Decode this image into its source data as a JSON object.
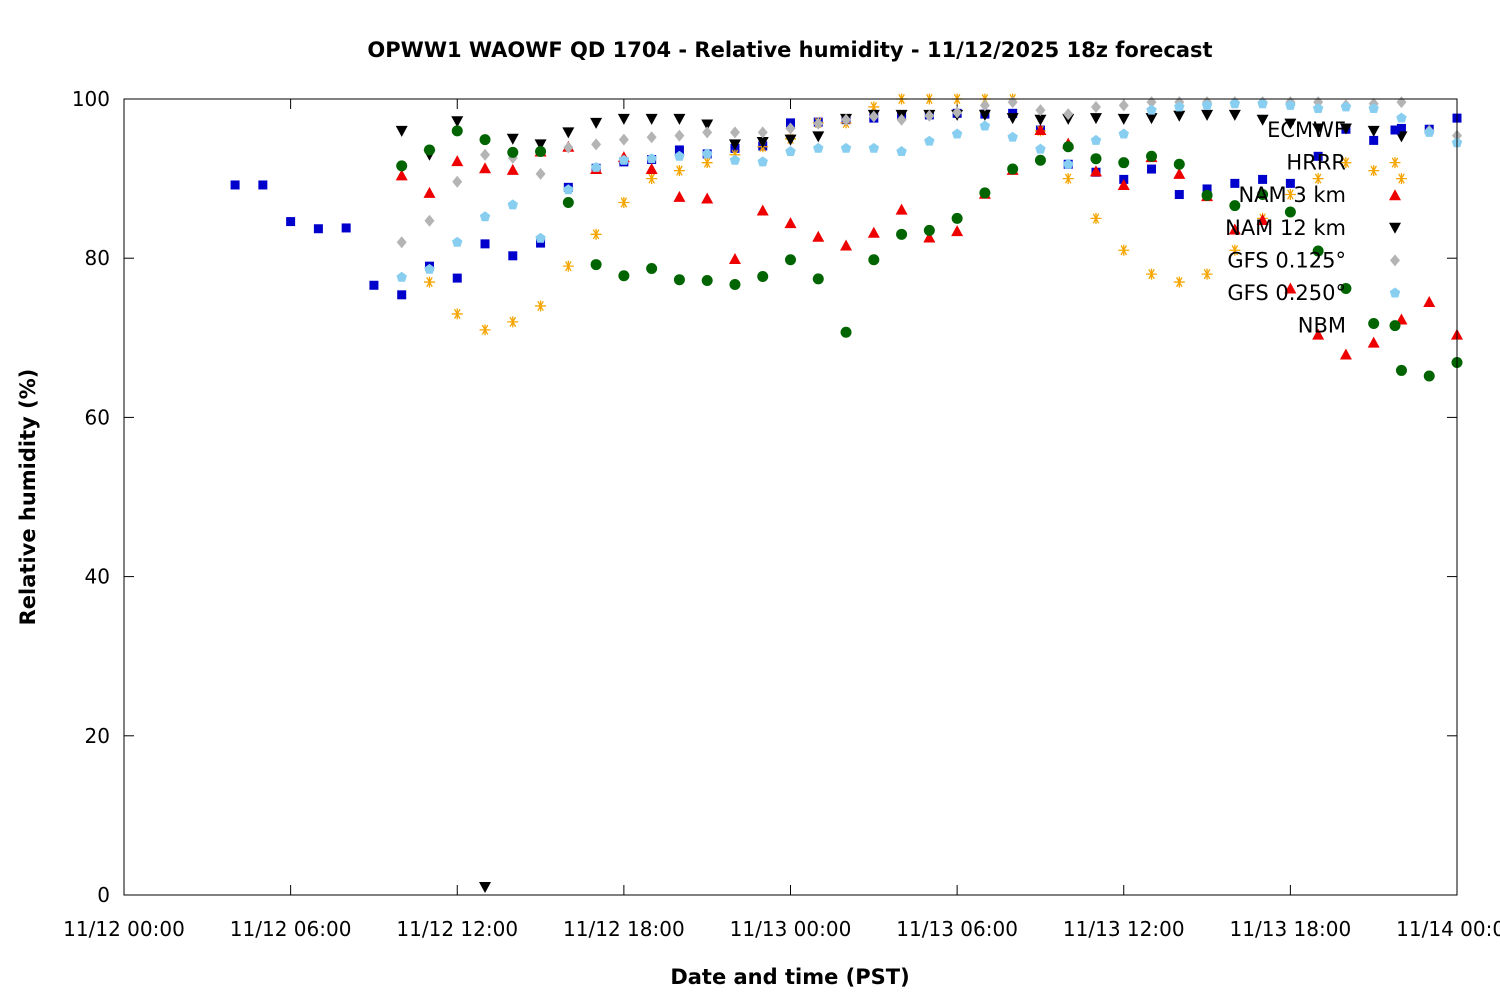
{
  "chart_data": {
    "type": "scatter",
    "title": "OPWW1 WAOWF QD 1704 - Relative humidity - 11/12/2025 18z forecast",
    "xlabel": "Date and time (PST)",
    "ylabel": "Relative humidity (%)",
    "x_unit": "hours since 11/12 00:00 PST",
    "xlim": [
      0,
      48
    ],
    "ylim": [
      0,
      100
    ],
    "x_ticks": [
      {
        "value": 0,
        "label": "11/12 00:00"
      },
      {
        "value": 6,
        "label": "11/12 06:00"
      },
      {
        "value": 12,
        "label": "11/12 12:00"
      },
      {
        "value": 18,
        "label": "11/12 18:00"
      },
      {
        "value": 24,
        "label": "11/13 00:00"
      },
      {
        "value": 30,
        "label": "11/13 06:00"
      },
      {
        "value": 36,
        "label": "11/13 12:00"
      },
      {
        "value": 42,
        "label": "11/13 18:00"
      },
      {
        "value": 48,
        "label": "11/14 00:00"
      }
    ],
    "y_ticks": [
      {
        "value": 0,
        "label": "0"
      },
      {
        "value": 20,
        "label": "20"
      },
      {
        "value": 40,
        "label": "40"
      },
      {
        "value": 60,
        "label": "60"
      },
      {
        "value": 80,
        "label": "80"
      },
      {
        "value": 100,
        "label": "100"
      }
    ],
    "grid": false,
    "legend_position": "top-right",
    "series": [
      {
        "name": "ECMWF",
        "marker": "square",
        "color": "#0000cc",
        "x": [
          4,
          5,
          6,
          7,
          8,
          9,
          10,
          11,
          12,
          13,
          14,
          15,
          16,
          17,
          18,
          19,
          20,
          21,
          22,
          23,
          24,
          25,
          26,
          27,
          28,
          29,
          30,
          31,
          32,
          33,
          34,
          35,
          36,
          37,
          38,
          39,
          40,
          41,
          42,
          43,
          44,
          45,
          46,
          47,
          48
        ],
        "y": [
          89.2,
          89.2,
          84.6,
          83.7,
          83.8,
          76.6,
          75.4,
          79.0,
          77.5,
          81.8,
          80.3,
          81.9,
          88.9,
          91.3,
          92.1,
          92.4,
          93.6,
          93.1,
          93.8,
          94.1,
          97.0,
          97.1,
          97.4,
          97.6,
          98.0,
          98.0,
          98.2,
          98.1,
          98.2,
          96.1,
          91.8,
          90.8,
          89.9,
          91.2,
          88.0,
          88.7,
          89.4,
          89.9,
          89.4,
          92.8,
          96.2,
          94.8,
          96.3,
          96.2,
          97.6
        ]
      },
      {
        "name": "HRRR",
        "marker": "asterisk",
        "color": "#f5a500",
        "x": [
          11,
          12,
          13,
          14,
          15,
          16,
          17,
          18,
          19,
          20,
          21,
          22,
          23,
          24,
          25,
          26,
          27,
          28,
          29,
          30,
          31,
          32,
          33,
          34,
          35,
          36,
          37,
          38,
          39,
          40,
          41,
          42,
          43,
          44,
          45,
          46
        ],
        "y": [
          77.0,
          73.0,
          71.0,
          72.0,
          74.0,
          79.0,
          83.0,
          87.0,
          90.0,
          91.0,
          92.0,
          93.0,
          94.0,
          95.0,
          97.0,
          97.0,
          99.0,
          100.0,
          100.0,
          100.0,
          100.0,
          100.0,
          96.0,
          90.0,
          85.0,
          81.0,
          78.0,
          77.0,
          78.0,
          81.0,
          85.0,
          88.0,
          90.0,
          92.0,
          91.0,
          90.0
        ]
      },
      {
        "name": "NAM 3 km",
        "marker": "triangle",
        "color": "#ee0000",
        "x": [
          10,
          11,
          12,
          13,
          14,
          15,
          16,
          17,
          18,
          19,
          20,
          21,
          22,
          23,
          24,
          25,
          26,
          27,
          28,
          29,
          30,
          31,
          32,
          33,
          34,
          35,
          36,
          37,
          38,
          39,
          40,
          41,
          42,
          43,
          44,
          45,
          46,
          47,
          48
        ],
        "y": [
          90.4,
          88.2,
          92.2,
          91.3,
          91.1,
          93.4,
          94.0,
          91.2,
          92.7,
          91.2,
          87.7,
          87.5,
          79.9,
          86.0,
          84.4,
          82.7,
          81.6,
          83.2,
          86.1,
          82.6,
          83.4,
          88.1,
          91.1,
          96.1,
          94.4,
          90.9,
          89.2,
          92.7,
          90.6,
          87.8,
          83.6,
          84.8,
          76.2,
          70.4,
          67.9,
          69.4,
          72.3,
          74.5,
          70.4
        ]
      },
      {
        "name": "NAM 12 km",
        "marker": "triangle-down",
        "color": "#000000",
        "x": [
          10,
          11,
          12,
          13,
          14,
          15,
          16,
          17,
          18,
          19,
          20,
          21,
          22,
          23,
          24,
          25,
          26,
          27,
          28,
          29,
          30,
          31,
          32,
          33,
          34,
          35,
          36,
          37,
          38,
          39,
          40,
          41,
          42,
          43,
          44,
          45,
          46
        ],
        "y": [
          96.0,
          93.0,
          97.2,
          1.0,
          95.0,
          94.3,
          95.8,
          97.0,
          97.5,
          97.5,
          97.5,
          96.8,
          94.3,
          94.6,
          94.9,
          95.3,
          97.5,
          98.0,
          98.0,
          98.0,
          98.0,
          98.0,
          97.6,
          97.4,
          97.5,
          97.6,
          97.5,
          97.6,
          97.9,
          98.0,
          98.0,
          97.4,
          96.9,
          96.3,
          96.3,
          96.0,
          95.3
        ]
      },
      {
        "name": "GFS 0.125°",
        "marker": "diamond",
        "color": "#b4b4b4",
        "x": [
          10,
          11,
          12,
          13,
          14,
          15,
          16,
          17,
          18,
          19,
          20,
          21,
          22,
          23,
          24,
          25,
          26,
          27,
          28,
          29,
          30,
          31,
          32,
          33,
          34,
          35,
          36,
          37,
          38,
          39,
          40,
          41,
          42,
          43,
          44,
          45,
          46,
          47,
          48
        ],
        "y": [
          82.0,
          84.7,
          89.6,
          93.0,
          92.6,
          90.6,
          93.9,
          94.3,
          94.9,
          95.2,
          95.4,
          95.8,
          95.8,
          95.8,
          96.3,
          96.9,
          97.4,
          97.8,
          97.4,
          97.9,
          98.3,
          99.2,
          99.6,
          98.6,
          98.1,
          99.0,
          99.2,
          99.6,
          99.6,
          99.6,
          99.6,
          99.6,
          99.6,
          99.6,
          99.2,
          99.4,
          99.6,
          96.0,
          95.4
        ]
      },
      {
        "name": "GFS 0.250°",
        "marker": "pentagon",
        "color": "#87cef0",
        "x": [
          10,
          11,
          12,
          13,
          14,
          15,
          16,
          17,
          18,
          19,
          20,
          21,
          22,
          23,
          24,
          25,
          26,
          27,
          28,
          29,
          30,
          31,
          32,
          33,
          34,
          35,
          36,
          37,
          38,
          39,
          40,
          41,
          42,
          43,
          44,
          45,
          46,
          47,
          48
        ],
        "y": [
          77.6,
          78.6,
          82.0,
          85.2,
          86.7,
          82.5,
          88.6,
          91.4,
          92.3,
          92.5,
          92.8,
          93.1,
          92.3,
          92.1,
          93.4,
          93.8,
          93.8,
          93.8,
          93.4,
          94.7,
          95.6,
          96.6,
          95.2,
          93.7,
          91.8,
          94.8,
          95.6,
          98.6,
          99.0,
          99.2,
          99.4,
          99.4,
          99.2,
          98.8,
          99.0,
          98.8,
          97.6,
          95.8,
          94.5
        ]
      },
      {
        "name": "NBM",
        "marker": "circle",
        "color": "#006400",
        "x": [
          10,
          11,
          12,
          13,
          14,
          15,
          16,
          17,
          18,
          19,
          20,
          21,
          22,
          23,
          24,
          25,
          26,
          27,
          28,
          29,
          30,
          31,
          32,
          33,
          34,
          35,
          36,
          37,
          38,
          39,
          40,
          41,
          42,
          43,
          44,
          45,
          46,
          47,
          48
        ],
        "y": [
          91.6,
          93.6,
          96.0,
          94.9,
          93.3,
          93.4,
          87.0,
          79.2,
          77.8,
          78.7,
          77.3,
          77.2,
          76.7,
          77.7,
          79.8,
          77.4,
          70.7,
          79.8,
          83.0,
          83.5,
          85.0,
          88.2,
          91.2,
          92.3,
          94.0,
          92.5,
          92.0,
          92.8,
          91.8,
          87.9,
          86.6,
          88.0,
          85.8,
          80.9,
          76.2,
          71.8,
          65.9,
          65.2,
          66.9
        ]
      }
    ]
  }
}
